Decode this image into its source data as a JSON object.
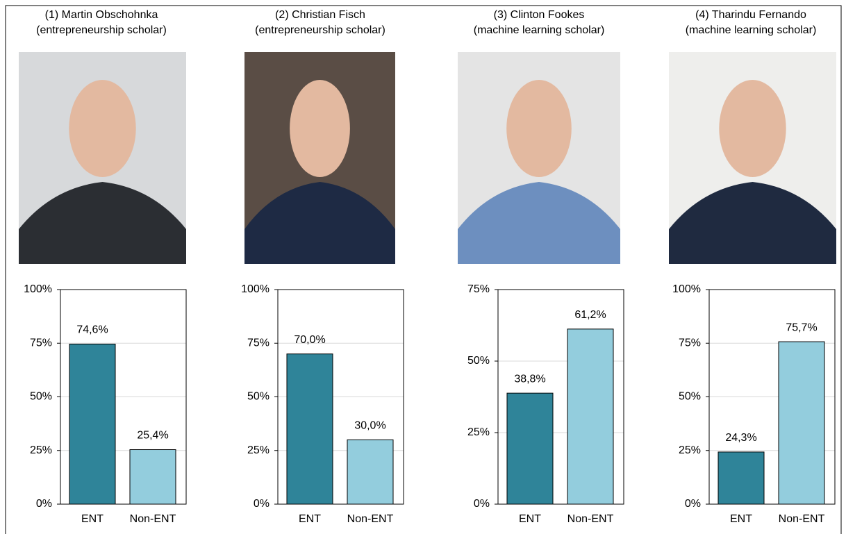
{
  "chart_data": [
    {
      "type": "bar",
      "title": "(1) Martin Obschohnka",
      "subtitle": "(entrepreneurship scholar)",
      "categories": [
        "ENT",
        "Non-ENT"
      ],
      "values": [
        74.6,
        25.4
      ],
      "value_labels": [
        "74,6%",
        "25,4%"
      ],
      "colors": [
        "#2f8499",
        "#93cddd"
      ],
      "ylim": [
        0,
        100
      ],
      "yticks": [
        {
          "value": 0,
          "label": "0%"
        },
        {
          "value": 25,
          "label": "25%"
        },
        {
          "value": 50,
          "label": "50%"
        },
        {
          "value": 75,
          "label": "75%"
        },
        {
          "value": 100,
          "label": "100%"
        }
      ],
      "grid": true
    },
    {
      "type": "bar",
      "title": "(2) Christian Fisch",
      "subtitle": "(entrepreneurship scholar)",
      "categories": [
        "ENT",
        "Non-ENT"
      ],
      "values": [
        70.0,
        30.0
      ],
      "value_labels": [
        "70,0%",
        "30,0%"
      ],
      "colors": [
        "#2f8499",
        "#93cddd"
      ],
      "ylim": [
        0,
        100
      ],
      "yticks": [
        {
          "value": 0,
          "label": "0%"
        },
        {
          "value": 25,
          "label": "25%"
        },
        {
          "value": 50,
          "label": "50%"
        },
        {
          "value": 75,
          "label": "75%"
        },
        {
          "value": 100,
          "label": "100%"
        }
      ],
      "grid": true
    },
    {
      "type": "bar",
      "title": "(3) Clinton Fookes",
      "subtitle": "(machine learning scholar)",
      "categories": [
        "ENT",
        "Non-ENT"
      ],
      "values": [
        38.8,
        61.2
      ],
      "value_labels": [
        "38,8%",
        "61,2%"
      ],
      "colors": [
        "#2f8499",
        "#93cddd"
      ],
      "ylim": [
        0,
        75
      ],
      "yticks": [
        {
          "value": 0,
          "label": "0%"
        },
        {
          "value": 25,
          "label": "25%"
        },
        {
          "value": 50,
          "label": "50%"
        },
        {
          "value": 75,
          "label": "75%"
        }
      ],
      "grid": true
    },
    {
      "type": "bar",
      "title": "(4) Tharindu Fernando",
      "subtitle": "(machine learning scholar)",
      "categories": [
        "ENT",
        "Non-ENT"
      ],
      "values": [
        24.3,
        75.7
      ],
      "value_labels": [
        "24,3%",
        "75,7%"
      ],
      "colors": [
        "#2f8499",
        "#93cddd"
      ],
      "ylim": [
        0,
        100
      ],
      "yticks": [
        {
          "value": 0,
          "label": "0%"
        },
        {
          "value": 25,
          "label": "25%"
        },
        {
          "value": 50,
          "label": "50%"
        },
        {
          "value": 75,
          "label": "75%"
        },
        {
          "value": 100,
          "label": "100%"
        }
      ],
      "grid": true
    }
  ]
}
